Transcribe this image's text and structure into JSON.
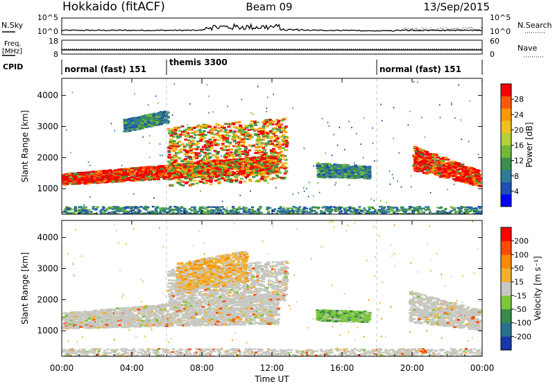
{
  "header": {
    "station": "Hokkaido (fitACF)",
    "beam": "Beam 09",
    "date": "13/Sep/2015"
  },
  "nsky_panel": {
    "left_label": "N.Sky",
    "right_label": "N.Search",
    "left_ticks": [
      "10^5",
      "10^0"
    ],
    "right_ticks": [
      "10^5",
      "10^0"
    ]
  },
  "freq_panel": {
    "left_label_1": "Freq.",
    "left_label_2": "[MHz]",
    "left_ticks": [
      "18",
      "8"
    ],
    "right_label": "Nave",
    "right_ticks": [
      "60",
      "0"
    ],
    "freq_mhz": 11,
    "nave": 22
  },
  "cpid": {
    "label": "CPID",
    "segments": [
      {
        "name": "normal (fast) 151",
        "start_h": 0,
        "end_h": 6
      },
      {
        "name": "themis 3300",
        "start_h": 6,
        "end_h": 18
      },
      {
        "name": "normal (fast) 151",
        "start_h": 18,
        "end_h": 24
      }
    ]
  },
  "axes": {
    "x_label": "Time UT",
    "x_ticks": [
      "00:00",
      "04:00",
      "08:00",
      "12:00",
      "16:00",
      "20:00",
      "00:00"
    ],
    "x_range_h": [
      0,
      24
    ],
    "y_label": "Slant Range [km]",
    "y_ticks": [
      "1000",
      "2000",
      "3000",
      "4000"
    ],
    "y_range_km": [
      180,
      4550
    ]
  },
  "colorbars": {
    "power": {
      "label": "Power [dB]",
      "ticks": [
        "4",
        "8",
        "12",
        "16",
        "20",
        "24",
        "28"
      ],
      "colors": [
        "#0000ff",
        "#1f4fb0",
        "#2e7b9a",
        "#3c8f4c",
        "#71b93b",
        "#b4d13a",
        "#f0c020",
        "#ff9800",
        "#ff5a00",
        "#f40000"
      ]
    },
    "velocity": {
      "label": "Velocity [m s⁻¹]",
      "ticks": [
        "200",
        "100",
        "50",
        "15",
        "-15",
        "-50",
        "-100",
        "-200"
      ],
      "colors": [
        "#1a37a8",
        "#2a6f8e",
        "#3a8a4a",
        "#7cc83c",
        "#c8c8c2",
        "#f2b12c",
        "#ff8a00",
        "#ff4a00",
        "#ff0000"
      ]
    }
  },
  "chart_data": [
    {
      "type": "heatmap",
      "title": "Power",
      "xlabel": "Time UT",
      "ylabel": "Slant Range [km]",
      "xlim": [
        0,
        24
      ],
      "ylim": [
        180,
        4550
      ],
      "regions": [
        {
          "t0": 0.0,
          "t1": 12.3,
          "r_top_start": 1500,
          "r_top_end": 2100,
          "r_bot_start": 1150,
          "r_bot_end": 1550,
          "level": "high"
        },
        {
          "t0": 6.0,
          "t1": 12.8,
          "r_top_start": 3000,
          "r_top_end": 3300,
          "r_bot_start": 1100,
          "r_bot_end": 1300,
          "level": "mid"
        },
        {
          "t0": 3.5,
          "t1": 6.0,
          "r_top_start": 3250,
          "r_top_end": 3550,
          "r_bot_start": 2850,
          "r_bot_end": 3150,
          "level": "low"
        },
        {
          "t0": 14.5,
          "t1": 17.5,
          "r_top_start": 1850,
          "r_top_end": 1750,
          "r_bot_start": 1400,
          "r_bot_end": 1350,
          "level": "low"
        },
        {
          "t0": 20.0,
          "t1": 23.8,
          "r_top_start": 2400,
          "r_top_end": 1600,
          "r_bot_start": 1600,
          "r_bot_end": 1100,
          "level": "high"
        }
      ]
    },
    {
      "type": "heatmap",
      "title": "Velocity",
      "xlabel": "Time UT",
      "ylabel": "Slant Range [km]",
      "xlim": [
        0,
        24
      ],
      "ylim": [
        180,
        4550
      ],
      "regions": [
        {
          "t0": 0.0,
          "t1": 12.3,
          "r_top_start": 1600,
          "r_top_end": 2200,
          "r_bot_start": 1100,
          "r_bot_end": 1250,
          "level": "near-zero"
        },
        {
          "t0": 6.0,
          "t1": 12.8,
          "r_top_start": 3000,
          "r_top_end": 3300,
          "r_bot_start": 1900,
          "r_bot_end": 2000,
          "level": "near-zero"
        },
        {
          "t0": 6.5,
          "t1": 10.5,
          "r_top_start": 3200,
          "r_top_end": 3600,
          "r_bot_start": 2300,
          "r_bot_end": 2600,
          "level": "slow-away"
        },
        {
          "t0": 14.5,
          "t1": 17.5,
          "r_top_start": 1700,
          "r_top_end": 1650,
          "r_bot_start": 1350,
          "r_bot_end": 1300,
          "level": "slow-toward"
        },
        {
          "t0": 19.8,
          "t1": 23.8,
          "r_top_start": 2300,
          "r_top_end": 1700,
          "r_bot_start": 1300,
          "r_bot_end": 1050,
          "level": "near-zero"
        }
      ]
    }
  ]
}
